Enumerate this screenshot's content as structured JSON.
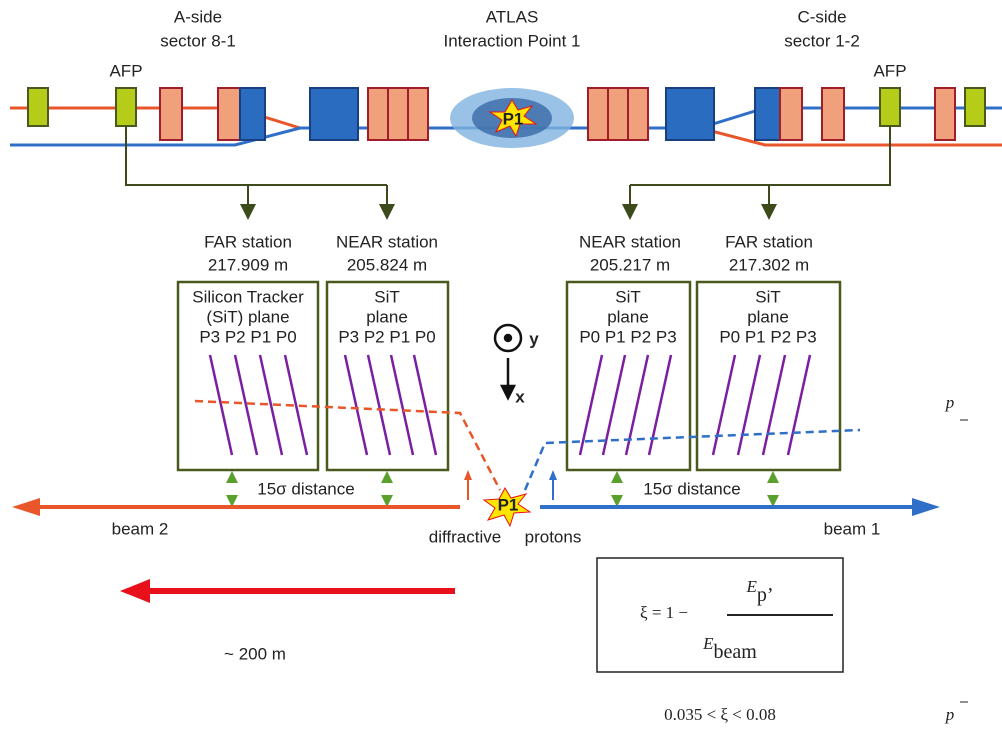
{
  "header": {
    "a_side": [
      "A-side",
      "sector 8-1"
    ],
    "atlas": [
      "ATLAS",
      "Interaction Point 1"
    ],
    "c_side": [
      "C-side",
      "sector 1-2"
    ]
  },
  "afp_labels": [
    "AFP",
    "AFP"
  ],
  "ip_label": "P1",
  "stations": [
    {
      "name": "FAR station",
      "distance": "217.909 m",
      "lines": [
        "Silicon Tracker",
        "(SiT) plane",
        "P3 P2 P1 P0"
      ]
    },
    {
      "name": "NEAR station",
      "distance": "205.824 m",
      "lines": [
        "SiT",
        "plane",
        "P3 P2 P1 P0"
      ]
    },
    {
      "name": "NEAR station",
      "distance": "205.217 m",
      "lines": [
        "SiT",
        "plane",
        "P0 P1 P2 P3"
      ]
    },
    {
      "name": "FAR station",
      "distance": "217.302 m",
      "lines": [
        "SiT",
        "plane",
        "P0 P1 P2 P3"
      ]
    }
  ],
  "axes": {
    "y": "y",
    "x": "x"
  },
  "distance_labels": [
    "15σ distance",
    "15σ distance"
  ],
  "beams": {
    "left": "beam 2",
    "right": "beam 1"
  },
  "protons": {
    "diffractive": "diffractive",
    "protons": "protons"
  },
  "collision_label": "P1",
  "range_arrow": "~ 200 m",
  "formula": {
    "lhs": "ξ = 1 −",
    "numerator": "E",
    "numerator_sub": "p’",
    "denominator": "E",
    "denominator_sub": "beam"
  },
  "xi_range": "0.035 < ξ < 0.08",
  "side_labels": [
    "p",
    "p"
  ]
}
